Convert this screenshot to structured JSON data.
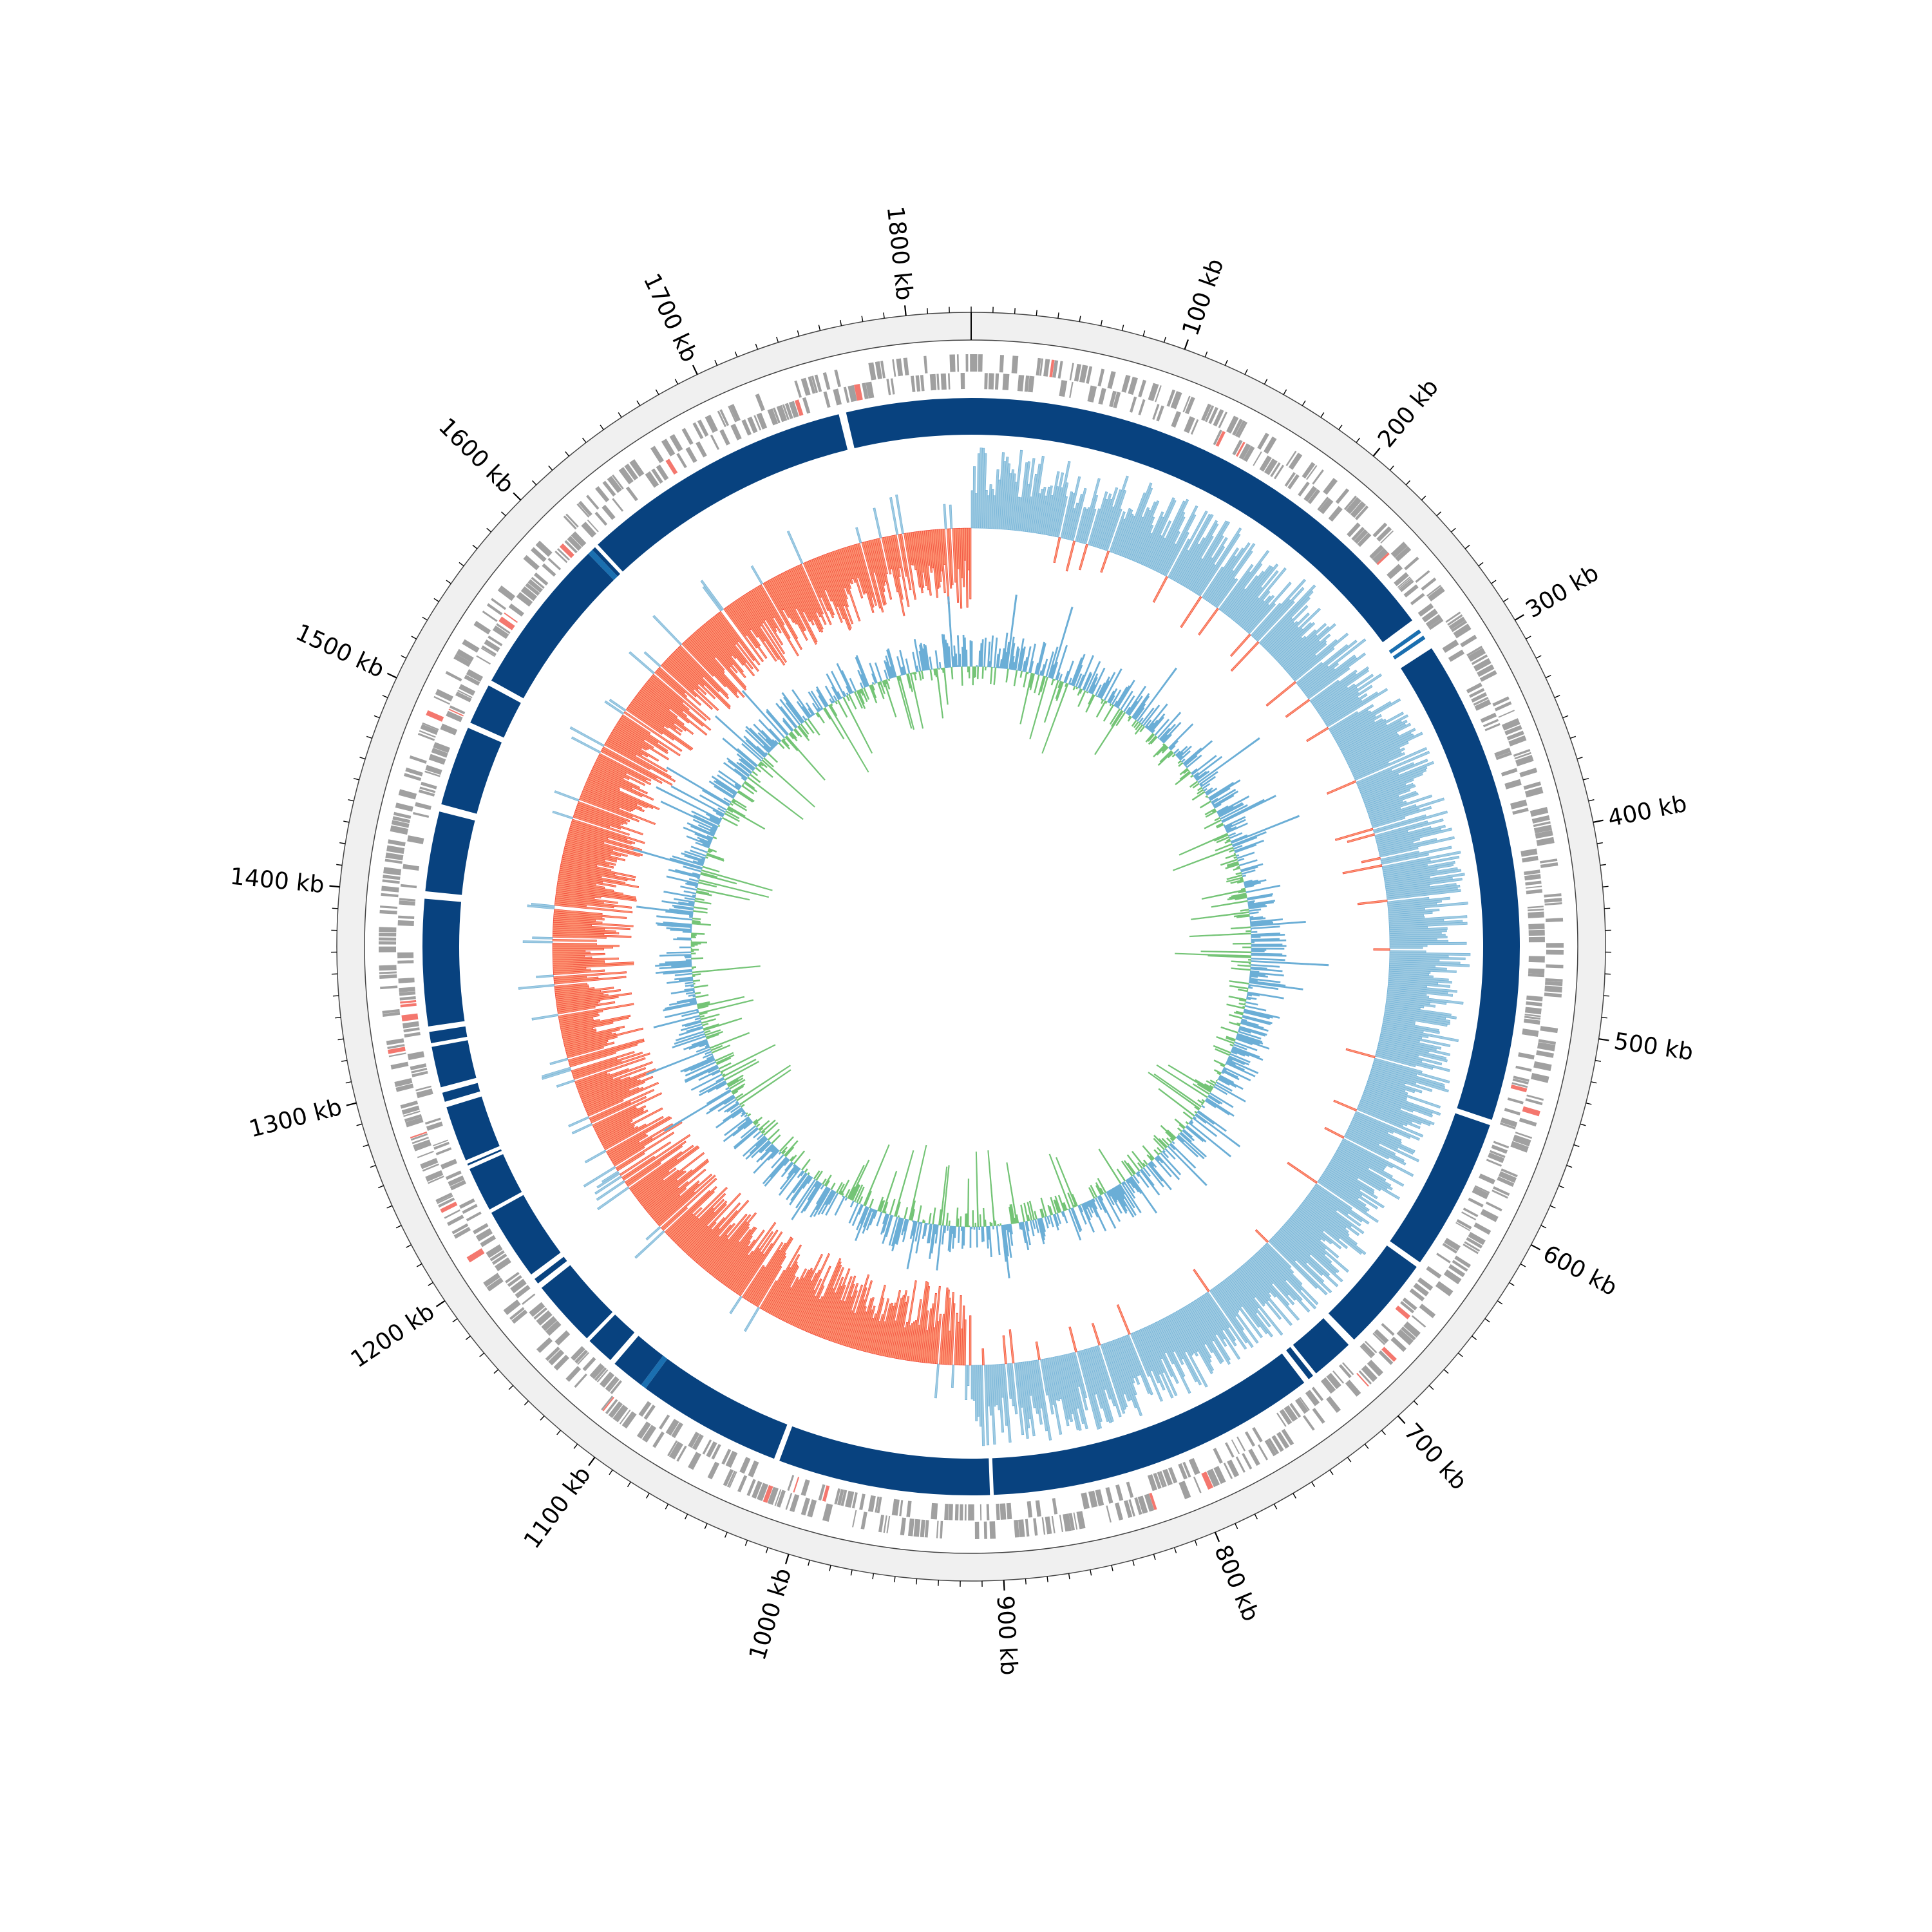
{
  "chart_data": {
    "type": "circos",
    "title": "",
    "genome_length_kb": 1830,
    "start_position": "top",
    "direction": "clockwise",
    "tick_labels": [
      "100 kb",
      "200 kb",
      "300 kb",
      "400 kb",
      "500 kb",
      "600 kb",
      "700 kb",
      "800 kb",
      "900 kb",
      "1000 kb",
      "1100 kb",
      "1200 kb",
      "1300 kb",
      "1400 kb",
      "1500 kb",
      "1600 kb",
      "1700 kb",
      "1800 kb"
    ],
    "tick_positions_kb": [
      100,
      200,
      300,
      400,
      500,
      600,
      700,
      800,
      900,
      1000,
      1100,
      1200,
      1300,
      1400,
      1500,
      1600,
      1700,
      1800
    ],
    "minor_tick_interval_kb": 10,
    "colors": {
      "outer_ring": "#f0f0f0",
      "genes": "#a0a0a0",
      "genes_highlight": "#f4776e",
      "contig": "#08427f",
      "contig_alt": "#1a6fb0",
      "gc_skew_positive": "#9ecae1",
      "gc_skew_positive_stroke": "#6baed6",
      "gc_skew_negative": "#fc9272",
      "gc_skew_negative_stroke": "#ef3b2c",
      "gc_content_above": "#6baed6",
      "gc_content_below": "#74c476"
    },
    "contig_blocks_kb": [
      [
        0,
        272
      ],
      [
        278,
        280
      ],
      [
        282,
        284
      ],
      [
        290,
        551
      ],
      [
        554,
        636
      ],
      [
        639,
        690
      ],
      [
        694,
        717
      ],
      [
        719,
        722
      ],
      [
        725,
        903
      ],
      [
        905,
        1019
      ],
      [
        1022,
        1100
      ],
      [
        1103,
        1121
      ],
      [
        1124,
        1139
      ],
      [
        1141,
        1177
      ],
      [
        1180,
        1183
      ],
      [
        1186,
        1225
      ],
      [
        1227,
        1251
      ],
      [
        1253,
        1254
      ],
      [
        1256,
        1286
      ],
      [
        1289,
        1294
      ],
      [
        1297,
        1319
      ],
      [
        1321,
        1327
      ],
      [
        1330,
        1398
      ],
      [
        1402,
        1445
      ],
      [
        1449,
        1492
      ],
      [
        1495,
        1517
      ],
      [
        1520,
        1605
      ],
      [
        1608,
        1610
      ],
      [
        1612,
        1759
      ],
      [
        1763,
        1830
      ]
    ],
    "contig_alt_blocks_kb": [
      [
        278,
        280
      ],
      [
        282,
        284
      ],
      [
        1100,
        1103
      ],
      [
        1605,
        1608
      ]
    ],
    "gc_skew_origin_kb": 0,
    "gc_skew_terminus_kb": 915
  }
}
